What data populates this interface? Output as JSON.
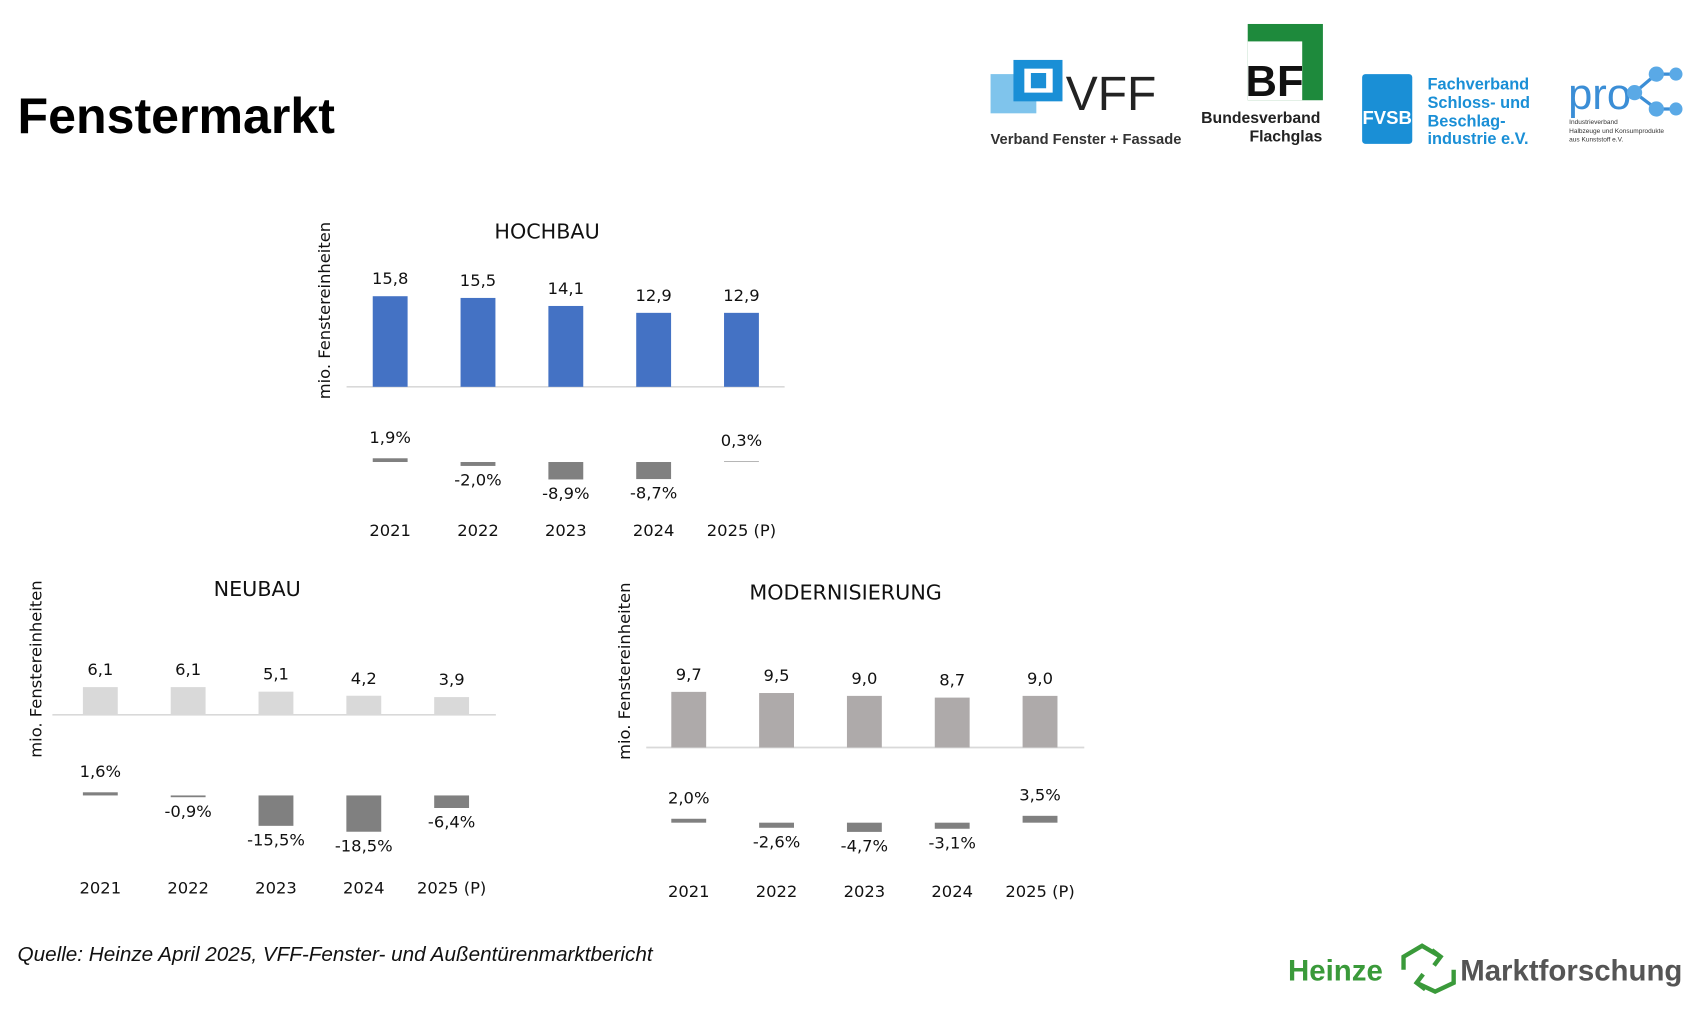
{
  "header": {
    "title": "Fenstermarkt"
  },
  "logos": {
    "vff": {
      "mark": "VFF",
      "name": "Verband Fenster + Fassade"
    },
    "bf": {
      "mark": "BF",
      "lines": [
        "Bundesverband",
        "Flachglas"
      ]
    },
    "fvsb": {
      "mark": "FVSB",
      "lines": [
        "Fachverband",
        "Schloss- und",
        "Beschlag-",
        "industrie e.V."
      ]
    },
    "pro": {
      "mark": "pro",
      "lines": [
        "Industrieverband",
        "Halbzeuge und Konsumprodukte",
        "aus Kunststoff e.V."
      ]
    }
  },
  "chart_data": [
    {
      "type": "bar",
      "title": "HOCHBAU",
      "y_label": "mio. Fenstereinheiten",
      "categories": [
        "2021",
        "2022",
        "2023",
        "2024",
        "2025 (P)"
      ],
      "values": [
        15.8,
        15.5,
        14.1,
        12.9,
        12.9
      ],
      "value_labels": [
        "15,8",
        "15,5",
        "14,1",
        "12,9",
        "12,9"
      ],
      "color": "#4472c4",
      "ylim": [
        0,
        19
      ],
      "changes": [
        1.9,
        -2.0,
        -8.9,
        -8.7,
        0.3
      ],
      "change_labels": [
        "1,9%",
        "-2,0%",
        "-8,9%",
        "-8,7%",
        "0,3%"
      ],
      "change_color": "#808080",
      "y2lim": [
        -20,
        20
      ]
    },
    {
      "type": "bar",
      "title": "NEUBAU",
      "y_label": "mio. Fenstereinheiten",
      "categories": [
        "2021",
        "2022",
        "2023",
        "2024",
        "2025 (P)"
      ],
      "values": [
        6.1,
        6.1,
        5.1,
        4.2,
        3.9
      ],
      "value_labels": [
        "6,1",
        "6,1",
        "5,1",
        "4,2",
        "3,9"
      ],
      "color": "#d9d9d9",
      "ylim": [
        0,
        24
      ],
      "changes": [
        1.6,
        -0.9,
        -15.5,
        -18.5,
        -6.4
      ],
      "change_labels": [
        "1,6%",
        "-0,9%",
        "-15,5%",
        "-18,5%",
        "-6,4%"
      ],
      "change_color": "#808080",
      "y2lim": [
        -20,
        20
      ]
    },
    {
      "type": "bar",
      "title": "MODERNISIERUNG",
      "y_label": "mio. Fenstereinheiten",
      "categories": [
        "2021",
        "2022",
        "2023",
        "2024",
        "2025 (P)"
      ],
      "values": [
        9.7,
        9.5,
        9.0,
        8.7,
        9.0
      ],
      "value_labels": [
        "9,7",
        "9,5",
        "9,0",
        "8,7",
        "9,0"
      ],
      "color": "#aeaaaa",
      "ylim": [
        0,
        19
      ],
      "changes": [
        2.0,
        -2.6,
        -4.7,
        -3.1,
        3.5
      ],
      "change_labels": [
        "2,0%",
        "-2,6%",
        "-4,7%",
        "-3,1%",
        "3,5%"
      ],
      "change_color": "#808080",
      "y2lim": [
        -20,
        20
      ]
    }
  ],
  "footer": {
    "source": "Quelle: Heinze April 2025, VFF-Fenster- und Außentürenmarktbericht",
    "brand": [
      "Heinze",
      "Marktforschung"
    ]
  }
}
